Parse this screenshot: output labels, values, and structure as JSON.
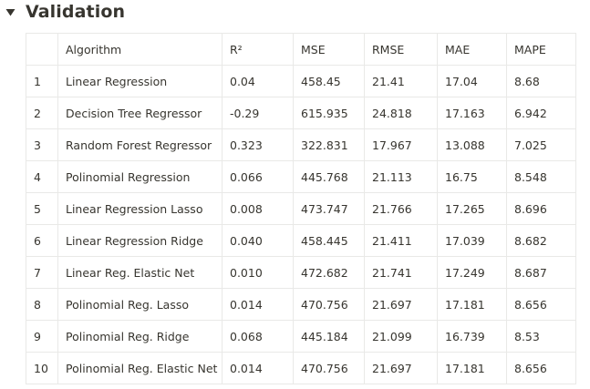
{
  "toggle": {
    "title": "Validation",
    "icon": "triangle-down-icon"
  },
  "table": {
    "columns": [
      "",
      "Algorithm",
      "R²",
      "MSE",
      "RMSE",
      "MAE",
      "MAPE"
    ],
    "rows": [
      [
        "1",
        "Linear Regression",
        "0.04",
        "458.45",
        "21.41",
        "17.04",
        "8.68"
      ],
      [
        "2",
        "Decision Tree Regressor",
        "-0.29",
        "615.935",
        "24.818",
        "17.163",
        "6.942"
      ],
      [
        "3",
        "Random Forest Regressor",
        "0.323",
        "322.831",
        "17.967",
        "13.088",
        "7.025"
      ],
      [
        "4",
        "Polinomial Regression",
        "0.066",
        "445.768",
        "21.113",
        "16.75",
        "8.548"
      ],
      [
        "5",
        "Linear Regression Lasso",
        "0.008",
        "473.747",
        "21.766",
        "17.265",
        "8.696"
      ],
      [
        "6",
        "Linear Regression Ridge",
        "0.040",
        "458.445",
        "21.411",
        "17.039",
        "8.682"
      ],
      [
        "7",
        "Linear Reg. Elastic Net",
        "0.010",
        "472.682",
        "21.741",
        "17.249",
        "8.687"
      ],
      [
        "8",
        "Polinomial Reg. Lasso",
        "0.014",
        "470.756",
        "21.697",
        "17.181",
        "8.656"
      ],
      [
        "9",
        "Polinomial Reg. Ridge",
        "0.068",
        "445.184",
        "21.099",
        "16.739",
        "8.53"
      ],
      [
        "10",
        "Polinomial Reg. Elastic Net",
        "0.014",
        "470.756",
        "21.697",
        "17.181",
        "8.656"
      ]
    ]
  }
}
